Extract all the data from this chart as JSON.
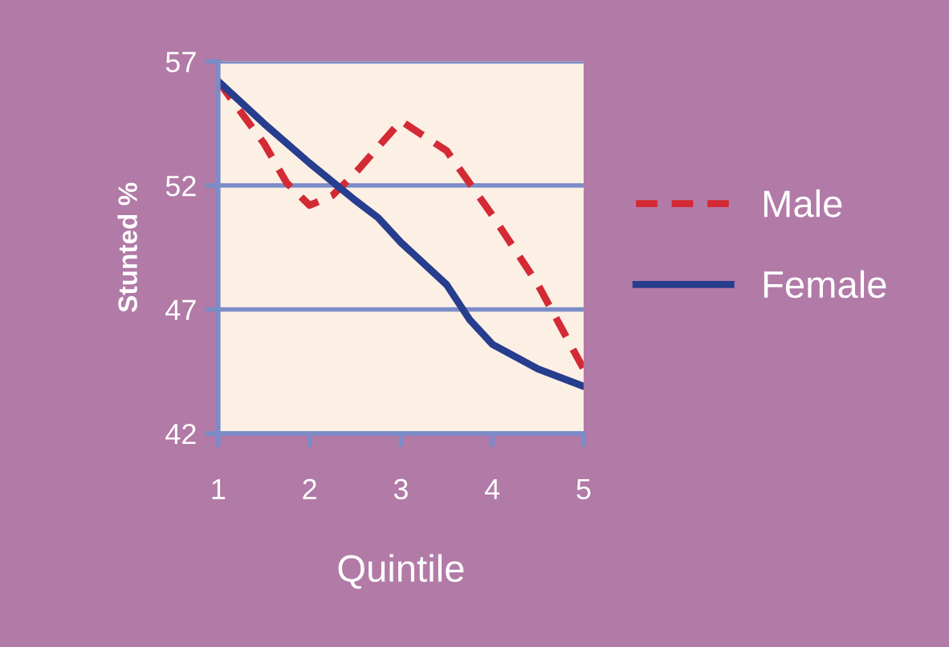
{
  "chart_data": {
    "type": "line",
    "xlabel": "Quintile",
    "ylabel": "Stunted %",
    "xlim": [
      1,
      5
    ],
    "xticks": [
      1,
      2,
      3,
      4,
      5
    ],
    "ylim": [
      42,
      57
    ],
    "yticks": [
      42,
      47,
      52,
      57
    ],
    "grid": "y",
    "legend": "right",
    "series": [
      {
        "name": "Male",
        "color": "#d42a35",
        "line_style": "dashed",
        "x": [
          1,
          1.5,
          1.75,
          2,
          2.25,
          2.5,
          3,
          3.5,
          4,
          4.5,
          5
        ],
        "values": [
          56.2,
          53.7,
          52.1,
          51.2,
          51.6,
          52.5,
          54.6,
          53.4,
          50.8,
          48.0,
          44.6
        ]
      },
      {
        "name": "Female",
        "color": "#273d8e",
        "line_style": "solid",
        "x": [
          1,
          1.5,
          2,
          2.5,
          2.75,
          3,
          3.5,
          3.75,
          4,
          4.5,
          5
        ],
        "values": [
          56.2,
          54.5,
          52.9,
          51.4,
          50.7,
          49.7,
          48.0,
          46.6,
          45.6,
          44.6,
          43.9
        ]
      }
    ]
  }
}
